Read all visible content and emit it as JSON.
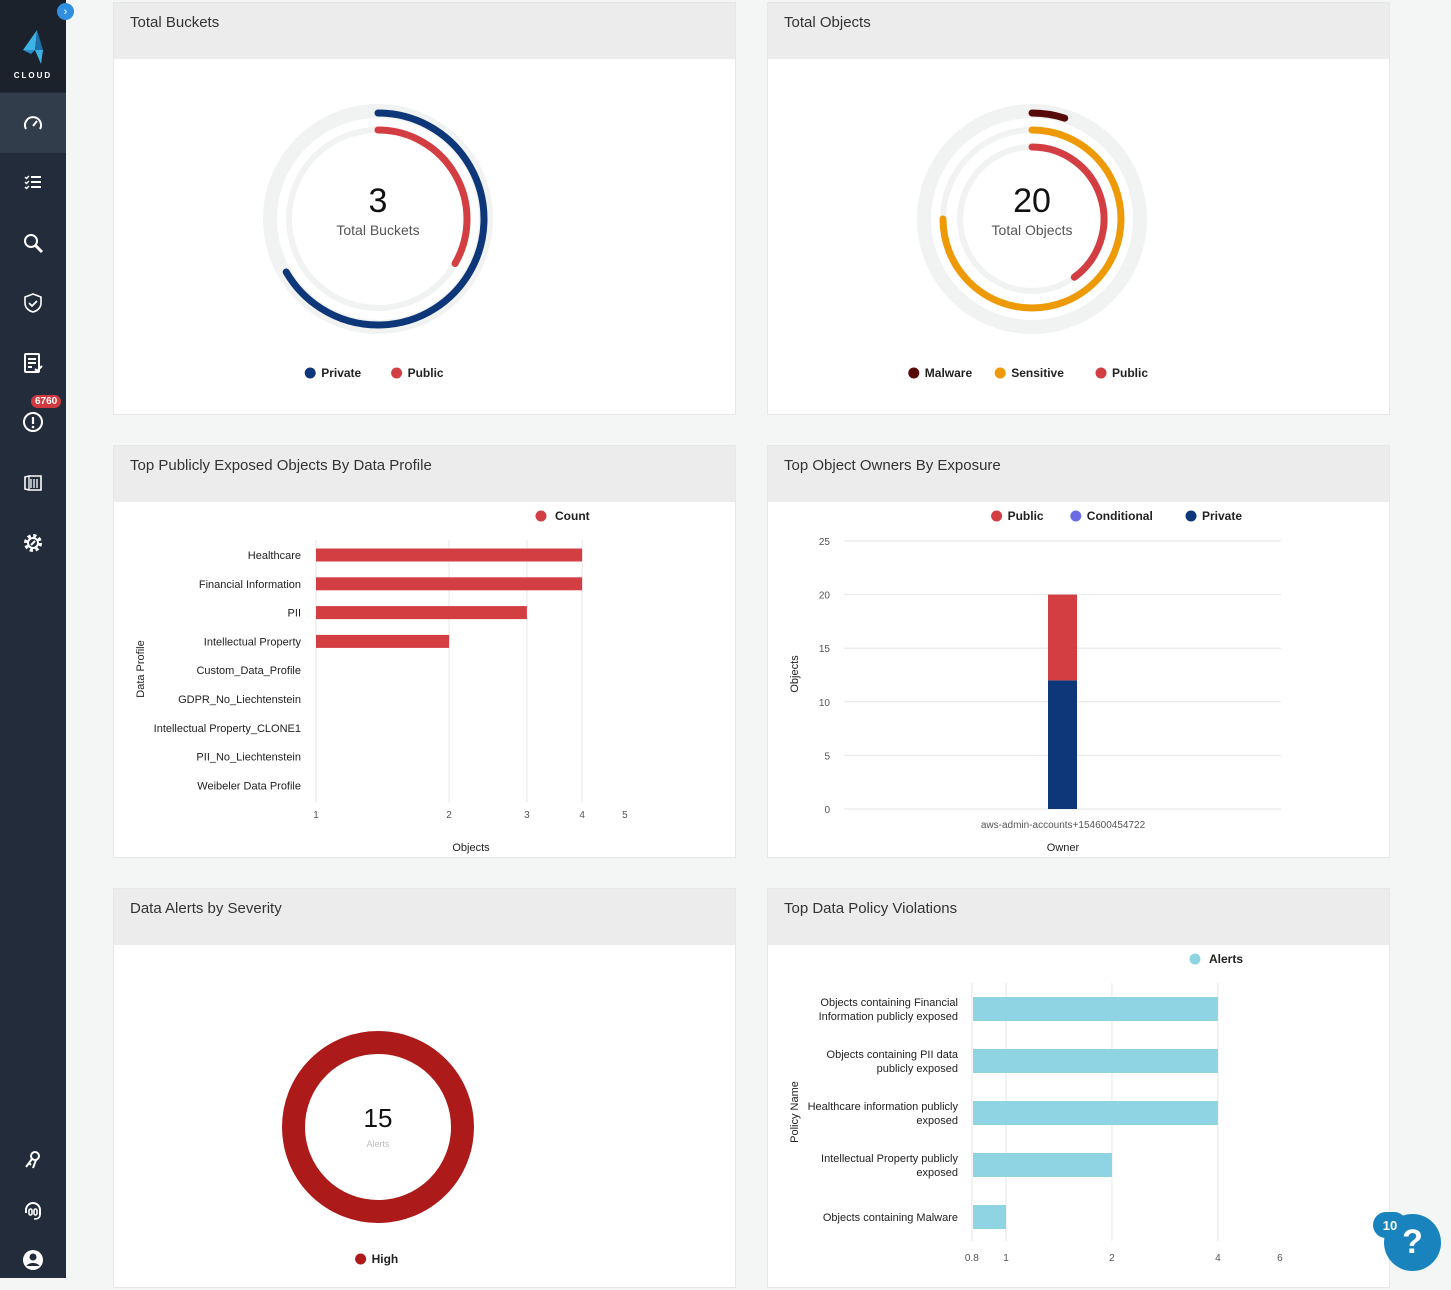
{
  "sidebar": {
    "logo_text": "CLOUD",
    "alerts_badge": "6760",
    "items": [
      {
        "icon": "dashboard-gauge-icon",
        "active": true
      },
      {
        "icon": "checklist-icon"
      },
      {
        "icon": "search-icon"
      },
      {
        "icon": "shield-check-icon"
      },
      {
        "icon": "report-icon"
      },
      {
        "icon": "alert-icon"
      },
      {
        "icon": "container-icon"
      },
      {
        "icon": "settings-gear-icon"
      },
      {
        "icon": "keys-icon"
      },
      {
        "icon": "support-headset-icon"
      },
      {
        "icon": "user-icon"
      }
    ]
  },
  "help": {
    "badge": "10",
    "label": "?"
  },
  "colors": {
    "private": "#0d3778",
    "public": "#d33e43",
    "malware": "#560a0a",
    "sensitive": "#ee9a07",
    "conditional": "#6b6be6",
    "alerts": "#8ed4e2",
    "high": "#ad1a1a"
  },
  "cards": {
    "total_buckets": {
      "title": "Total Buckets",
      "value": "3",
      "caption": "Total Buckets",
      "legend": [
        "Private",
        "Public"
      ]
    },
    "total_objects": {
      "title": "Total Objects",
      "value": "20",
      "caption": "Total Objects",
      "legend": [
        "Malware",
        "Sensitive",
        "Public"
      ]
    },
    "exposed_by_profile": {
      "title": "Top Publicly Exposed Objects By Data Profile"
    },
    "owners_by_exposure": {
      "title": "Top Object Owners By Exposure"
    },
    "alerts_by_severity": {
      "title": "Data Alerts by Severity",
      "value": "15",
      "caption": "Alerts",
      "legend": [
        "High"
      ]
    },
    "policy_violations": {
      "title": "Top Data Policy Violations"
    }
  },
  "chart_data": [
    {
      "type": "radial-bar",
      "title": "Total Buckets",
      "max": 3,
      "series": [
        {
          "name": "Private",
          "value": 2
        },
        {
          "name": "Public",
          "value": 1
        }
      ]
    },
    {
      "type": "radial-bar",
      "title": "Total Objects",
      "max": 20,
      "series": [
        {
          "name": "Malware",
          "value": 1
        },
        {
          "name": "Sensitive",
          "value": 15
        },
        {
          "name": "Public",
          "value": 8
        }
      ]
    },
    {
      "type": "bar",
      "orientation": "horizontal",
      "xscale": "log",
      "xlim": [
        1,
        5
      ],
      "xticks": [
        "1",
        "2",
        "3",
        "4",
        "5"
      ],
      "xlabel": "Objects",
      "ylabel": "Data Profile",
      "grid": true,
      "legend_position": "top-right",
      "categories": [
        "Healthcare",
        "Financial Information",
        "PII",
        "Intellectual Property",
        "Custom_Data_Profile",
        "GDPR_No_Liechtenstein",
        "Intellectual Property_CLONE1",
        "PII_No_Liechtenstein",
        "Weibeler Data Profile"
      ],
      "series": [
        {
          "name": "Count",
          "values": [
            4,
            4,
            3,
            2,
            0,
            0,
            0,
            0,
            0
          ]
        }
      ]
    },
    {
      "type": "bar",
      "stacked": true,
      "ylim": [
        0,
        25
      ],
      "yticks": [
        "0",
        "5",
        "10",
        "15",
        "20",
        "25"
      ],
      "xlabel": "Owner",
      "ylabel": "Objects",
      "grid": true,
      "legend_position": "top",
      "categories": [
        "aws-admin-accounts+154600454722"
      ],
      "series": [
        {
          "name": "Public",
          "values": [
            8
          ]
        },
        {
          "name": "Conditional",
          "values": [
            0
          ]
        },
        {
          "name": "Private",
          "values": [
            12
          ]
        }
      ]
    },
    {
      "type": "pie",
      "donut": true,
      "title": "Data Alerts by Severity",
      "series": [
        {
          "name": "High",
          "value": 15
        }
      ]
    },
    {
      "type": "bar",
      "orientation": "horizontal",
      "xscale": "log",
      "xlim": [
        0.8,
        6
      ],
      "xticks": [
        "0.8",
        "1",
        "2",
        "4",
        "6"
      ],
      "ylabel": "Policy Name",
      "grid": true,
      "legend_position": "top-right",
      "categories": [
        [
          "Objects containing Financial",
          "Information publicly exposed"
        ],
        [
          "Objects containing PII data",
          "publicly exposed"
        ],
        [
          "Healthcare information publicly",
          "exposed"
        ],
        [
          "Intellectual Property publicly",
          "exposed"
        ],
        [
          "Objects containing Malware"
        ]
      ],
      "series": [
        {
          "name": "Alerts",
          "values": [
            4,
            4,
            4,
            2,
            1
          ]
        }
      ]
    }
  ]
}
